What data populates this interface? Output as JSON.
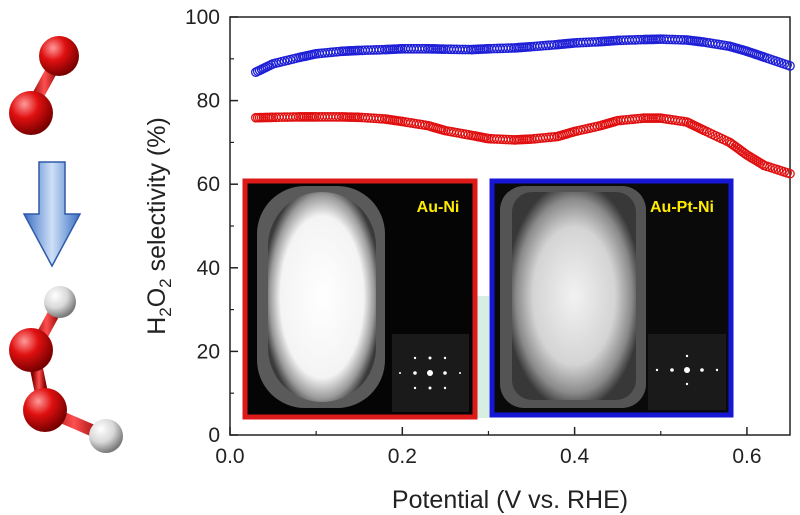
{
  "chart_data": {
    "type": "scatter",
    "title": "",
    "xlabel": "Potential (V vs. RHE)",
    "ylabel_parts": [
      "H",
      "2",
      "O",
      "2",
      " selectivity (%)"
    ],
    "xlim": [
      0.0,
      0.65
    ],
    "ylim": [
      0,
      100
    ],
    "x_ticks": [
      "0.0",
      "0.2",
      "0.4",
      "0.6"
    ],
    "y_ticks": [
      "0",
      "20",
      "40",
      "60",
      "80",
      "100"
    ],
    "grid": false,
    "marker": "open-circle",
    "series": [
      {
        "color": "#1f1fd6",
        "x": [
          0.03,
          0.05,
          0.08,
          0.1,
          0.13,
          0.15,
          0.18,
          0.2,
          0.23,
          0.25,
          0.28,
          0.3,
          0.33,
          0.35,
          0.38,
          0.4,
          0.43,
          0.45,
          0.48,
          0.5,
          0.53,
          0.55,
          0.58,
          0.6,
          0.62,
          0.65
        ],
        "y": [
          86.8,
          88.8,
          90.3,
          91.2,
          91.8,
          92.0,
          92.2,
          92.4,
          92.4,
          92.3,
          92.2,
          92.4,
          92.6,
          92.9,
          93.4,
          93.8,
          94.1,
          94.4,
          94.6,
          94.7,
          94.5,
          94.0,
          93.0,
          91.8,
          90.4,
          88.3
        ]
      },
      {
        "color": "#e01010",
        "x": [
          0.03,
          0.05,
          0.08,
          0.1,
          0.13,
          0.15,
          0.18,
          0.2,
          0.23,
          0.25,
          0.28,
          0.3,
          0.33,
          0.35,
          0.38,
          0.4,
          0.43,
          0.45,
          0.48,
          0.5,
          0.53,
          0.55,
          0.58,
          0.6,
          0.62,
          0.65
        ],
        "y": [
          75.9,
          76.0,
          76.1,
          76.1,
          76.1,
          76.0,
          75.6,
          75.0,
          74.0,
          72.8,
          71.7,
          70.9,
          70.6,
          70.8,
          71.4,
          72.6,
          74.0,
          75.2,
          75.8,
          75.8,
          74.9,
          72.9,
          70.0,
          67.0,
          64.5,
          62.5
        ]
      }
    ],
    "insets": [
      {
        "label": "Au-Ni",
        "frame_color": "#dd1a1a"
      },
      {
        "label": "Au-Pt-Ni",
        "frame_color": "#1616d4"
      }
    ]
  },
  "molecule_colors": {
    "oxygen": "#e01010",
    "hydrogen": "#eeeeee",
    "arrow": "#7aa0dc"
  }
}
